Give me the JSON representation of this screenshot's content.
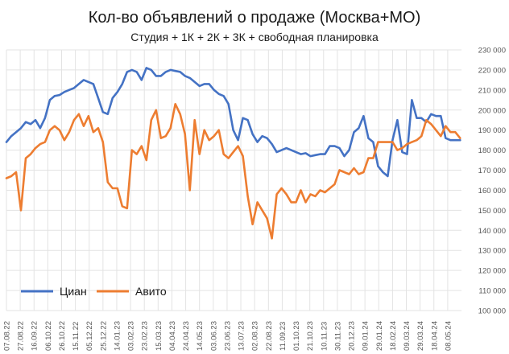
{
  "chart_data": {
    "type": "line",
    "title": "Кол-во объявлений о продаже (Москва+МО)",
    "subtitle": "Студия + 1К + 2К + 3К + свободная планировка",
    "xlabel": "",
    "ylabel": "",
    "ylim": [
      100000,
      230000
    ],
    "y_ticks": [
      100000,
      110000,
      120000,
      130000,
      140000,
      150000,
      160000,
      170000,
      180000,
      190000,
      200000,
      210000,
      220000,
      230000
    ],
    "y_tick_labels": [
      "100 000",
      "110 000",
      "120 000",
      "130 000",
      "140 000",
      "150 000",
      "160 000",
      "170 000",
      "180 000",
      "190 000",
      "200 000",
      "210 000",
      "220 000",
      "230 000"
    ],
    "x_tick_labels": [
      "07.08.22",
      "27.08.22",
      "16.09.22",
      "06.10.22",
      "26.10.22",
      "15.11.22",
      "05.12.22",
      "25.12.22",
      "14.01.23",
      "03.02.23",
      "23.02.23",
      "15.03.23",
      "04.04.23",
      "24.04.23",
      "14.05.23",
      "03.06.23",
      "23.06.23",
      "13.07.23",
      "02.08.23",
      "22.08.23",
      "11.09.23",
      "01.10.23",
      "21.10.23",
      "10.11.23",
      "30.11.23",
      "20.12.23",
      "09.01.24",
      "29.01.24",
      "18.02.24",
      "09.03.24",
      "29.03.24",
      "18.04.24",
      "08.05.24"
    ],
    "x_start": "2022-08-07",
    "x_end": "2024-05-28",
    "grid": true,
    "legend_position": "bottom-left",
    "series": [
      {
        "name": "Циан",
        "color": "#4472c4",
        "x": [
          "2022-08-07",
          "2022-08-14",
          "2022-08-21",
          "2022-08-28",
          "2022-09-04",
          "2022-09-11",
          "2022-09-18",
          "2022-09-25",
          "2022-10-02",
          "2022-10-09",
          "2022-10-16",
          "2022-10-23",
          "2022-10-30",
          "2022-11-06",
          "2022-11-13",
          "2022-11-20",
          "2022-11-27",
          "2022-12-04",
          "2022-12-11",
          "2022-12-18",
          "2022-12-25",
          "2023-01-01",
          "2023-01-08",
          "2023-01-15",
          "2023-01-22",
          "2023-01-29",
          "2023-02-05",
          "2023-02-12",
          "2023-02-19",
          "2023-02-26",
          "2023-03-05",
          "2023-03-12",
          "2023-03-19",
          "2023-03-26",
          "2023-04-02",
          "2023-04-09",
          "2023-04-16",
          "2023-04-23",
          "2023-04-30",
          "2023-05-07",
          "2023-05-14",
          "2023-05-21",
          "2023-05-28",
          "2023-06-04",
          "2023-06-11",
          "2023-06-18",
          "2023-06-25",
          "2023-07-02",
          "2023-07-09",
          "2023-07-16",
          "2023-07-23",
          "2023-07-30",
          "2023-08-06",
          "2023-08-13",
          "2023-08-20",
          "2023-08-27",
          "2023-09-03",
          "2023-09-10",
          "2023-09-17",
          "2023-09-24",
          "2023-10-01",
          "2023-10-08",
          "2023-10-15",
          "2023-10-22",
          "2023-10-29",
          "2023-11-05",
          "2023-11-12",
          "2023-11-19",
          "2023-11-26",
          "2023-12-03",
          "2023-12-10",
          "2023-12-17",
          "2023-12-24",
          "2023-12-31",
          "2024-01-07",
          "2024-01-14",
          "2024-01-21",
          "2024-01-28",
          "2024-02-04",
          "2024-02-11",
          "2024-02-18",
          "2024-02-25",
          "2024-03-03",
          "2024-03-10",
          "2024-03-17",
          "2024-03-24",
          "2024-03-31",
          "2024-04-07",
          "2024-04-14",
          "2024-04-21",
          "2024-04-28",
          "2024-05-05",
          "2024-05-12",
          "2024-05-19",
          "2024-05-26"
        ],
        "y": [
          184000,
          187000,
          189000,
          191000,
          194000,
          193000,
          195000,
          191000,
          196000,
          205000,
          207000,
          207500,
          209000,
          210000,
          211000,
          213000,
          215000,
          214000,
          213000,
          206000,
          199000,
          198000,
          206000,
          209000,
          213000,
          219000,
          220000,
          219000,
          215000,
          221000,
          220000,
          217000,
          217000,
          219000,
          220000,
          219500,
          219000,
          217000,
          216000,
          214000,
          212000,
          213000,
          213000,
          210000,
          208000,
          207000,
          203000,
          190000,
          185000,
          196000,
          195000,
          188000,
          184000,
          187000,
          186000,
          183000,
          179000,
          180000,
          181000,
          180000,
          179000,
          178000,
          178500,
          177000,
          177500,
          178000,
          178000,
          182000,
          182000,
          181000,
          177000,
          180000,
          189000,
          191000,
          197000,
          186000,
          184000,
          172000,
          169000,
          167000,
          185000,
          195000,
          179000,
          178000,
          205000,
          196000,
          196000,
          194000,
          198000,
          197000,
          197000,
          186000,
          185000,
          185000,
          185000
        ]
      },
      {
        "name": "Авито",
        "color": "#ed7d31",
        "x": [
          "2022-08-07",
          "2022-08-14",
          "2022-08-21",
          "2022-08-28",
          "2022-09-04",
          "2022-09-11",
          "2022-09-18",
          "2022-09-25",
          "2022-10-02",
          "2022-10-09",
          "2022-10-16",
          "2022-10-23",
          "2022-10-30",
          "2022-11-06",
          "2022-11-13",
          "2022-11-20",
          "2022-11-27",
          "2022-12-04",
          "2022-12-11",
          "2022-12-18",
          "2022-12-25",
          "2023-01-01",
          "2023-01-08",
          "2023-01-15",
          "2023-01-22",
          "2023-01-29",
          "2023-02-05",
          "2023-02-12",
          "2023-02-19",
          "2023-02-26",
          "2023-03-05",
          "2023-03-12",
          "2023-03-19",
          "2023-03-26",
          "2023-04-02",
          "2023-04-09",
          "2023-04-16",
          "2023-04-23",
          "2023-04-30",
          "2023-05-07",
          "2023-05-14",
          "2023-05-21",
          "2023-05-28",
          "2023-06-04",
          "2023-06-11",
          "2023-06-18",
          "2023-06-25",
          "2023-07-02",
          "2023-07-09",
          "2023-07-16",
          "2023-07-23",
          "2023-07-30",
          "2023-08-06",
          "2023-08-13",
          "2023-08-20",
          "2023-08-27",
          "2023-09-03",
          "2023-09-10",
          "2023-09-17",
          "2023-09-24",
          "2023-10-01",
          "2023-10-08",
          "2023-10-15",
          "2023-10-22",
          "2023-10-29",
          "2023-11-05",
          "2023-11-12",
          "2023-11-19",
          "2023-11-26",
          "2023-12-03",
          "2023-12-10",
          "2023-12-17",
          "2023-12-24",
          "2023-12-31",
          "2024-01-07",
          "2024-01-14",
          "2024-01-21",
          "2024-01-28",
          "2024-02-04",
          "2024-02-11",
          "2024-02-18",
          "2024-02-25",
          "2024-03-03",
          "2024-03-10",
          "2024-03-17",
          "2024-03-24",
          "2024-03-31",
          "2024-04-07",
          "2024-04-14",
          "2024-04-21",
          "2024-04-28",
          "2024-05-05",
          "2024-05-12",
          "2024-05-19",
          "2024-05-26"
        ],
        "y": [
          166000,
          167000,
          169000,
          150000,
          176000,
          178000,
          181000,
          183000,
          184000,
          190000,
          192000,
          190000,
          185000,
          189000,
          195000,
          198000,
          192000,
          197000,
          189000,
          191000,
          184000,
          164000,
          161000,
          161000,
          152000,
          151000,
          180000,
          178000,
          182000,
          175000,
          195000,
          200000,
          186000,
          187000,
          191000,
          203000,
          198000,
          188000,
          160000,
          195000,
          178000,
          190000,
          185000,
          187000,
          190000,
          178000,
          176000,
          179000,
          182000,
          177000,
          157000,
          143000,
          154000,
          150000,
          146000,
          136000,
          158000,
          161000,
          158000,
          154000,
          154000,
          160000,
          154000,
          158000,
          157000,
          160000,
          159000,
          161000,
          163000,
          170000,
          169000,
          168000,
          171000,
          168000,
          169000,
          176000,
          176000,
          184000,
          184000,
          184000,
          184000,
          180000,
          181000,
          183000,
          184000,
          185000,
          187000,
          195000,
          193000,
          190000,
          187000,
          192000,
          189000,
          189000,
          186000
        ]
      }
    ]
  }
}
